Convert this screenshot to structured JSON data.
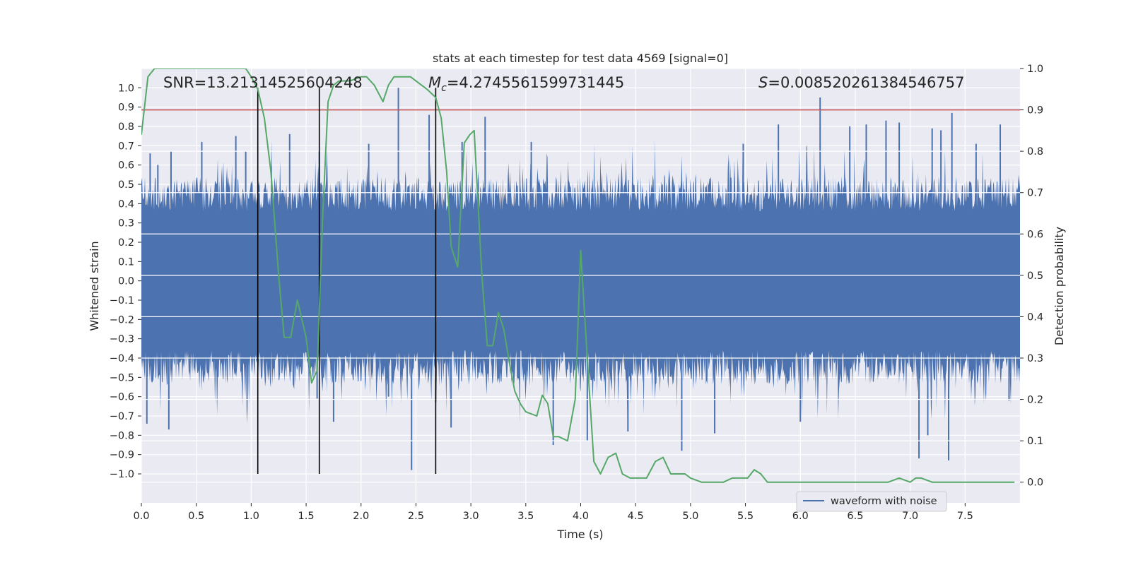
{
  "chart_data": {
    "type": "line",
    "title": "stats at each timestep for test data 4569 [signal=0]",
    "xlabel": "Time (s)",
    "ylabel_left": "Whitened strain",
    "ylabel_right": "Detection probability",
    "xlim": [
      0.0,
      8.0
    ],
    "ylim_left": [
      -1.15,
      1.1
    ],
    "ylim_right": [
      -0.05,
      1.0
    ],
    "x_ticks": [
      "0.0",
      "0.5",
      "1.0",
      "1.5",
      "2.0",
      "2.5",
      "3.0",
      "3.5",
      "4.0",
      "4.5",
      "5.0",
      "5.5",
      "6.0",
      "6.5",
      "7.0",
      "7.5"
    ],
    "x_tick_values": [
      0.0,
      0.5,
      1.0,
      1.5,
      2.0,
      2.5,
      3.0,
      3.5,
      4.0,
      4.5,
      5.0,
      5.5,
      6.0,
      6.5,
      7.0,
      7.5
    ],
    "y_left_ticks": [
      "1.0",
      "0.9",
      "0.8",
      "0.7",
      "0.6",
      "0.5",
      "0.4",
      "0.3",
      "0.2",
      "0.1",
      "0.0",
      "−0.1",
      "−0.2",
      "−0.3",
      "−0.4",
      "−0.5",
      "−0.6",
      "−0.7",
      "−0.8",
      "−0.9",
      "−1.0"
    ],
    "y_left_tick_values": [
      1.0,
      0.9,
      0.8,
      0.7,
      0.6,
      0.5,
      0.4,
      0.3,
      0.2,
      0.1,
      0.0,
      -0.1,
      -0.2,
      -0.3,
      -0.4,
      -0.5,
      -0.6,
      -0.7,
      -0.8,
      -0.9,
      -1.0
    ],
    "y_right_ticks": [
      "1.0",
      "0.9",
      "0.8",
      "0.7",
      "0.6",
      "0.5",
      "0.4",
      "0.3",
      "0.2",
      "0.1",
      "0.0"
    ],
    "y_right_tick_values": [
      1.0,
      0.9,
      0.8,
      0.7,
      0.6,
      0.5,
      0.4,
      0.3,
      0.2,
      0.1,
      0.0
    ],
    "threshold": {
      "value": 0.9,
      "axis": "right",
      "color": "#c44e52"
    },
    "vertical_lines": {
      "x": [
        1.06,
        1.62,
        2.68
      ],
      "ymin": -1.0,
      "ymax": 1.0,
      "color": "#000000"
    },
    "annotations": {
      "snr": "SNR=13.21314525604248",
      "mc_symbol": "M",
      "mc_sub": "c",
      "mc_value": "=4.2745561599731445",
      "s_symbol": "S",
      "s_value": "=0.008520261384546757"
    },
    "legend": {
      "label": "waveform with noise",
      "color": "#4c72b0",
      "position": "lower-right"
    },
    "series": [
      {
        "name": "waveform with noise",
        "axis": "left",
        "color": "#4c72b0",
        "style": "noise-waveform",
        "duration": 8.0,
        "baseline_amplitude": 0.42,
        "peaks": [
          {
            "t": 0.05,
            "v": -0.74
          },
          {
            "t": 0.08,
            "v": 0.66
          },
          {
            "t": 0.15,
            "v": 0.6
          },
          {
            "t": 0.25,
            "v": -0.77
          },
          {
            "t": 0.27,
            "v": 0.67
          },
          {
            "t": 0.55,
            "v": 0.72
          },
          {
            "t": 0.86,
            "v": 0.75
          },
          {
            "t": 0.95,
            "v": 0.67
          },
          {
            "t": 1.35,
            "v": 0.76
          },
          {
            "t": 1.6,
            "v": -0.61
          },
          {
            "t": 1.62,
            "v": 0.67
          },
          {
            "t": 1.75,
            "v": -0.73
          },
          {
            "t": 2.07,
            "v": 0.71
          },
          {
            "t": 2.25,
            "v": -0.6
          },
          {
            "t": 2.34,
            "v": 1.0
          },
          {
            "t": 2.46,
            "v": -0.98
          },
          {
            "t": 2.62,
            "v": 0.86
          },
          {
            "t": 2.68,
            "v": -0.63
          },
          {
            "t": 2.82,
            "v": -0.76
          },
          {
            "t": 2.92,
            "v": 0.72
          },
          {
            "t": 3.13,
            "v": 0.85
          },
          {
            "t": 3.55,
            "v": 0.72
          },
          {
            "t": 3.75,
            "v": -0.85
          },
          {
            "t": 4.06,
            "v": -0.83
          },
          {
            "t": 4.43,
            "v": -0.78
          },
          {
            "t": 4.92,
            "v": -0.88
          },
          {
            "t": 5.22,
            "v": -0.79
          },
          {
            "t": 5.48,
            "v": 0.71
          },
          {
            "t": 5.8,
            "v": 0.81
          },
          {
            "t": 6.0,
            "v": -0.73
          },
          {
            "t": 6.18,
            "v": 0.95
          },
          {
            "t": 6.45,
            "v": 0.8
          },
          {
            "t": 6.6,
            "v": 0.81
          },
          {
            "t": 6.78,
            "v": 0.83
          },
          {
            "t": 6.9,
            "v": 0.82
          },
          {
            "t": 7.08,
            "v": -0.92
          },
          {
            "t": 7.16,
            "v": -0.8
          },
          {
            "t": 7.2,
            "v": 0.79
          },
          {
            "t": 7.28,
            "v": 0.78
          },
          {
            "t": 7.35,
            "v": -0.93
          },
          {
            "t": 7.38,
            "v": 0.87
          },
          {
            "t": 7.6,
            "v": 0.71
          },
          {
            "t": 7.82,
            "v": 0.81
          },
          {
            "t": 7.9,
            "v": -0.62
          }
        ]
      },
      {
        "name": "detection probability",
        "axis": "right",
        "color": "#55a868",
        "x": [
          0.0,
          0.06,
          0.12,
          0.25,
          0.5,
          0.7,
          0.8,
          0.9,
          0.95,
          1.0,
          1.06,
          1.12,
          1.18,
          1.25,
          1.3,
          1.36,
          1.42,
          1.5,
          1.55,
          1.6,
          1.65,
          1.7,
          1.75,
          1.8,
          1.9,
          2.0,
          2.05,
          2.12,
          2.2,
          2.25,
          2.3,
          2.35,
          2.4,
          2.45,
          2.5,
          2.55,
          2.6,
          2.68,
          2.73,
          2.78,
          2.82,
          2.88,
          2.94,
          2.99,
          3.03,
          3.1,
          3.15,
          3.2,
          3.25,
          3.3,
          3.35,
          3.4,
          3.45,
          3.5,
          3.6,
          3.65,
          3.7,
          3.75,
          3.8,
          3.88,
          3.95,
          4.0,
          4.06,
          4.12,
          4.18,
          4.25,
          4.32,
          4.38,
          4.45,
          4.52,
          4.6,
          4.68,
          4.75,
          4.82,
          4.88,
          4.95,
          5.0,
          5.1,
          5.2,
          5.3,
          5.38,
          5.45,
          5.52,
          5.58,
          5.64,
          5.7,
          5.8,
          6.0,
          6.2,
          6.5,
          6.8,
          6.9,
          7.0,
          7.05,
          7.1,
          7.2,
          7.4,
          7.6,
          7.75,
          7.85,
          7.95
        ],
        "values": [
          0.84,
          0.98,
          1.0,
          1.0,
          1.0,
          1.0,
          1.0,
          1.0,
          1.0,
          0.98,
          0.95,
          0.88,
          0.75,
          0.5,
          0.35,
          0.35,
          0.44,
          0.35,
          0.24,
          0.27,
          0.64,
          0.92,
          0.96,
          0.97,
          0.97,
          0.98,
          0.98,
          0.96,
          0.92,
          0.96,
          0.98,
          0.98,
          0.98,
          0.98,
          0.97,
          0.96,
          0.95,
          0.93,
          0.88,
          0.75,
          0.57,
          0.52,
          0.82,
          0.84,
          0.85,
          0.5,
          0.33,
          0.33,
          0.41,
          0.37,
          0.29,
          0.22,
          0.19,
          0.17,
          0.16,
          0.21,
          0.19,
          0.11,
          0.11,
          0.1,
          0.2,
          0.56,
          0.3,
          0.05,
          0.02,
          0.06,
          0.07,
          0.02,
          0.01,
          0.01,
          0.01,
          0.05,
          0.06,
          0.02,
          0.02,
          0.02,
          0.01,
          0.0,
          0.0,
          0.0,
          0.01,
          0.01,
          0.01,
          0.03,
          0.02,
          0.0,
          0.0,
          0.0,
          0.0,
          0.0,
          0.0,
          0.01,
          0.0,
          0.01,
          0.01,
          0.0,
          0.0,
          0.0,
          0.0,
          0.0,
          0.0
        ]
      }
    ]
  }
}
